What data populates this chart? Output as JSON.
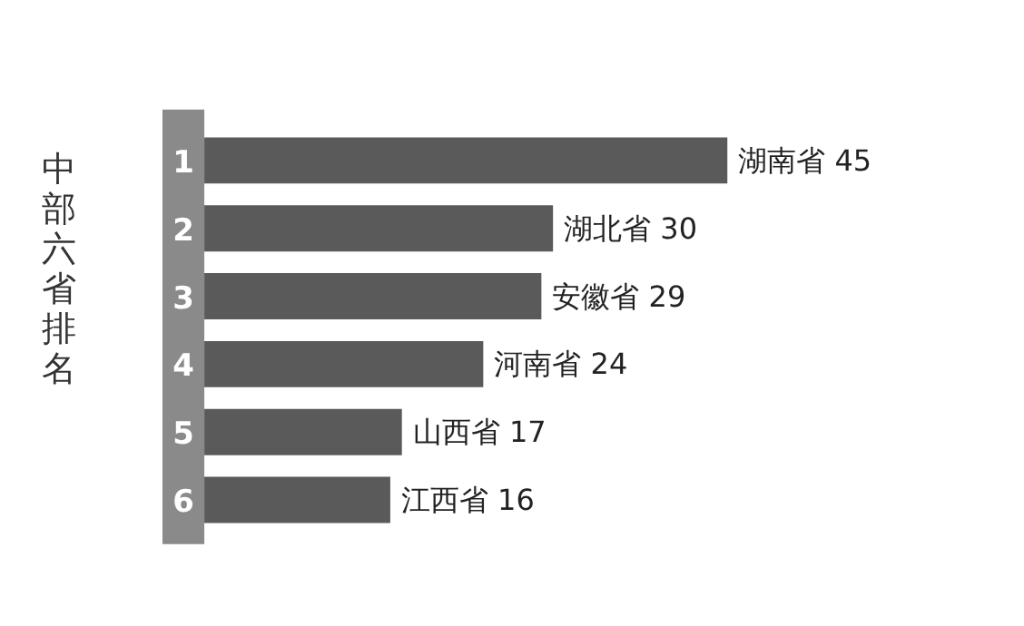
{
  "chart_data": {
    "type": "bar",
    "orientation": "horizontal",
    "title": "中部六省排名",
    "categories": [
      "1",
      "2",
      "3",
      "4",
      "5",
      "6"
    ],
    "values": [
      45,
      30,
      29,
      24,
      17,
      16
    ],
    "color": "#5a5a5a",
    "value_labels": [
      "湖南省 45",
      "湖北省 30",
      "安徽省 29",
      "河南省 24",
      "山西省 17",
      "江西省 16"
    ]
  }
}
